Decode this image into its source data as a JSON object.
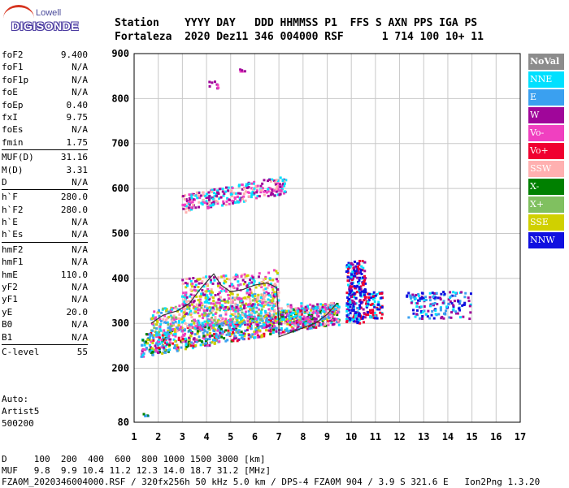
{
  "logo": {
    "line1": "Lowell",
    "line2": "DIGISONDE"
  },
  "header": {
    "line1": "Station    YYYY DAY   DDD HHMMSS P1  FFS S AXN PPS IGA PS",
    "line2": "Fortaleza  2020 Dez11 346 004000 RSF      1 714 100 10+ 11"
  },
  "params": {
    "group1": [
      {
        "k": "foF2",
        "v": "9.400"
      },
      {
        "k": "foF1",
        "v": "N/A"
      },
      {
        "k": "foF1p",
        "v": "N/A"
      },
      {
        "k": "foE",
        "v": "N/A"
      },
      {
        "k": "foEp",
        "v": "0.40"
      },
      {
        "k": "fxI",
        "v": "9.75"
      },
      {
        "k": "foEs",
        "v": "N/A"
      },
      {
        "k": "fmin",
        "v": "1.75"
      }
    ],
    "group2": [
      {
        "k": "MUF(D)",
        "v": "31.16"
      },
      {
        "k": "M(D)",
        "v": "3.31"
      },
      {
        "k": "D",
        "v": "N/A"
      }
    ],
    "group3": [
      {
        "k": "h`F",
        "v": "280.0"
      },
      {
        "k": "h`F2",
        "v": "280.0"
      },
      {
        "k": "h`E",
        "v": "N/A"
      },
      {
        "k": "h`Es",
        "v": "N/A"
      }
    ],
    "group4": [
      {
        "k": "hmF2",
        "v": "N/A"
      },
      {
        "k": "hmF1",
        "v": "N/A"
      },
      {
        "k": "hmE",
        "v": "110.0"
      },
      {
        "k": "yF2",
        "v": "N/A"
      },
      {
        "k": "yF1",
        "v": "N/A"
      },
      {
        "k": "yE",
        "v": "20.0"
      },
      {
        "k": "B0",
        "v": "N/A"
      },
      {
        "k": "B1",
        "v": "N/A"
      }
    ],
    "group5": [
      {
        "k": "C-level",
        "v": "55"
      }
    ]
  },
  "auto": {
    "line1": "Auto:",
    "line2": "Artist5",
    "line3": "500200"
  },
  "legend": [
    {
      "label": "NoVal",
      "color": "#8c8c8c"
    },
    {
      "label": "NNE",
      "color": "#00e0ff"
    },
    {
      "label": "E",
      "color": "#3aa0f0"
    },
    {
      "label": "W",
      "color": "#a0069a"
    },
    {
      "label": "Vo-",
      "color": "#f040c0"
    },
    {
      "label": "Vo+",
      "color": "#f00030"
    },
    {
      "label": "SSW",
      "color": "#ffb0b0"
    },
    {
      "label": "X-",
      "color": "#008000"
    },
    {
      "label": "X+",
      "color": "#80c060"
    },
    {
      "label": "SSE",
      "color": "#d0d000"
    },
    {
      "label": "NNW",
      "color": "#1010e0"
    }
  ],
  "bottom": {
    "line1": "D     100  200  400  600  800 1000 1500 3000 [km]",
    "line2": "MUF   9.8  9.9 10.4 11.2 12.3 14.0 18.7 31.2 [MHz]",
    "line3": "FZA0M_2020346004000.RSF / 320fx256h 50 kHz 5.0 km / DPS-4 FZA0M 904 / 3.9 S 321.6 E   Ion2Png 1.3.20"
  },
  "chart_data": {
    "type": "scatter",
    "xlim": [
      1,
      17
    ],
    "ylim": [
      80,
      900
    ],
    "x_ticks": [
      1,
      2,
      3,
      4,
      5,
      6,
      7,
      8,
      9,
      10,
      11,
      12,
      13,
      14,
      15,
      16,
      17
    ],
    "y_ticks": [
      80,
      200,
      300,
      400,
      500,
      600,
      700,
      800,
      900
    ],
    "grid": true,
    "legend_position": "right",
    "trace": [
      {
        "x": 1.7,
        "y": 300
      },
      {
        "x": 2.2,
        "y": 318
      },
      {
        "x": 2.8,
        "y": 328
      },
      {
        "x": 3.3,
        "y": 345
      },
      {
        "x": 3.8,
        "y": 380
      },
      {
        "x": 4.3,
        "y": 410
      },
      {
        "x": 4.6,
        "y": 385
      },
      {
        "x": 5.0,
        "y": 370
      },
      {
        "x": 5.5,
        "y": 375
      },
      {
        "x": 6.0,
        "y": 385
      },
      {
        "x": 6.5,
        "y": 390
      },
      {
        "x": 6.9,
        "y": 380
      },
      {
        "x": 7.0,
        "y": 300
      },
      {
        "x": 7.0,
        "y": 270
      },
      {
        "x": 7.5,
        "y": 280
      },
      {
        "x": 8.0,
        "y": 290
      },
      {
        "x": 8.5,
        "y": 300
      },
      {
        "x": 9.0,
        "y": 320
      },
      {
        "x": 9.4,
        "y": 345
      }
    ]
  }
}
